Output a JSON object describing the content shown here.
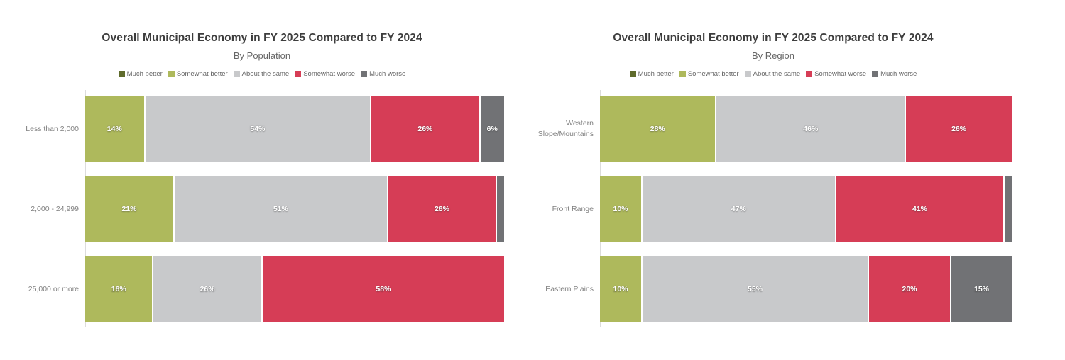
{
  "page": {
    "background": "#ffffff"
  },
  "legend_labels": [
    "Much better",
    "Somewhat better",
    "About the same",
    "Somewhat worse",
    "Much worse"
  ],
  "palette": {
    "much_better": "#5f6b2c",
    "somewhat_better": "#aeb95c",
    "about_the_same": "#c8c9cb",
    "somewhat_worse": "#d63d56",
    "much_worse": "#717275"
  },
  "chart_data": [
    {
      "type": "bar",
      "stacked": true,
      "orientation": "horizontal",
      "title": "Overall Municipal Economy in FY 2025 Compared to FY 2024",
      "subtitle": "By Population",
      "categories": [
        "Less than 2,000",
        "2,000 - 24,999",
        "25,000 or more"
      ],
      "series": [
        {
          "name": "Much better",
          "color": "#5f6b2c",
          "values": [
            0,
            0,
            0
          ]
        },
        {
          "name": "Somewhat better",
          "color": "#aeb95c",
          "values": [
            14,
            21,
            16
          ]
        },
        {
          "name": "About the same",
          "color": "#c8c9cb",
          "values": [
            54,
            51,
            26
          ]
        },
        {
          "name": "Somewhat worse",
          "color": "#d63d56",
          "values": [
            26,
            26,
            58
          ]
        },
        {
          "name": "Much worse",
          "color": "#717275",
          "values": [
            6,
            2,
            0
          ]
        }
      ],
      "value_suffix": "%",
      "xlim": [
        0,
        100
      ],
      "grid": false,
      "legend_position": "top",
      "segment_label_min": 5
    },
    {
      "type": "bar",
      "stacked": true,
      "orientation": "horizontal",
      "title": "Overall Municipal Economy in FY 2025 Compared to FY 2024",
      "subtitle": "By Region",
      "categories": [
        "Western Slope/Mountains",
        "Front Range",
        "Eastern Plains"
      ],
      "series": [
        {
          "name": "Much better",
          "color": "#5f6b2c",
          "values": [
            0,
            0,
            0
          ]
        },
        {
          "name": "Somewhat better",
          "color": "#aeb95c",
          "values": [
            28,
            10,
            10
          ]
        },
        {
          "name": "About the same",
          "color": "#c8c9cb",
          "values": [
            46,
            47,
            55
          ]
        },
        {
          "name": "Somewhat worse",
          "color": "#d63d56",
          "values": [
            26,
            41,
            20
          ]
        },
        {
          "name": "Much worse",
          "color": "#717275",
          "values": [
            0,
            2,
            15
          ]
        }
      ],
      "value_suffix": "%",
      "xlim": [
        0,
        100
      ],
      "grid": false,
      "legend_position": "top",
      "segment_label_min": 5
    }
  ]
}
